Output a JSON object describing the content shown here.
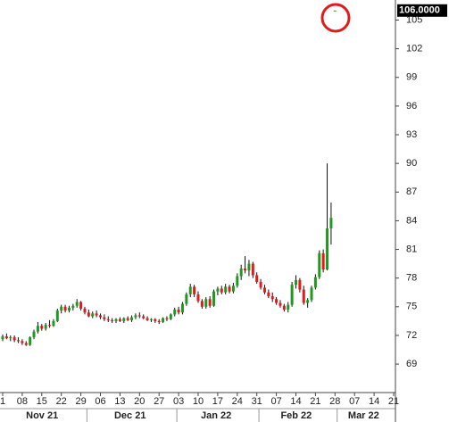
{
  "chart_data": {
    "type": "candlestick",
    "x": [
      "2021-11-01",
      "2021-11-02",
      "2021-11-03",
      "2021-11-04",
      "2021-11-05",
      "2021-11-08",
      "2021-11-09",
      "2021-11-10",
      "2021-11-11",
      "2021-11-12",
      "2021-11-15",
      "2021-11-16",
      "2021-11-17",
      "2021-11-18",
      "2021-11-19",
      "2021-11-22",
      "2021-11-23",
      "2021-11-24",
      "2021-11-25",
      "2021-11-26",
      "2021-11-29",
      "2021-11-30",
      "2021-12-01",
      "2021-12-02",
      "2021-12-03",
      "2021-12-06",
      "2021-12-07",
      "2021-12-08",
      "2021-12-09",
      "2021-12-10",
      "2021-12-13",
      "2021-12-14",
      "2021-12-15",
      "2021-12-16",
      "2021-12-17",
      "2021-12-20",
      "2021-12-21",
      "2021-12-22",
      "2021-12-23",
      "2021-12-24",
      "2021-12-27",
      "2021-12-28",
      "2021-12-29",
      "2021-12-30",
      "2021-12-31",
      "2022-01-03",
      "2022-01-04",
      "2022-01-05",
      "2022-01-06",
      "2022-01-07",
      "2022-01-10",
      "2022-01-11",
      "2022-01-12",
      "2022-01-13",
      "2022-01-14",
      "2022-01-17",
      "2022-01-18",
      "2022-01-19",
      "2022-01-20",
      "2022-01-21",
      "2022-01-24",
      "2022-01-25",
      "2022-01-26",
      "2022-01-27",
      "2022-01-28",
      "2022-01-31",
      "2022-02-01",
      "2022-02-02",
      "2022-02-03",
      "2022-02-04",
      "2022-02-07",
      "2022-02-08",
      "2022-02-09",
      "2022-02-10",
      "2022-02-11",
      "2022-02-14",
      "2022-02-15",
      "2022-02-16",
      "2022-02-17",
      "2022-02-18",
      "2022-02-21",
      "2022-02-22",
      "2022-02-23",
      "2022-02-24",
      "2022-02-25",
      "2022-02-28"
    ],
    "open": [
      71.6,
      71.9,
      71.7,
      71.8,
      71.5,
      71.4,
      71.2,
      71.0,
      71.8,
      72.4,
      73.0,
      72.7,
      73.1,
      73.0,
      73.5,
      74.6,
      75.0,
      74.6,
      74.9,
      75.1,
      75.5,
      74.8,
      74.4,
      74.0,
      74.3,
      74.1,
      73.9,
      73.7,
      73.6,
      73.5,
      73.7,
      73.5,
      73.8,
      73.6,
      73.9,
      74.1,
      74.0,
      73.8,
      73.6,
      73.7,
      73.5,
      73.4,
      73.8,
      73.7,
      74.2,
      74.7,
      74.4,
      75.3,
      76.3,
      77.1,
      76.3,
      75.6,
      75.0,
      75.8,
      75.1,
      76.6,
      76.9,
      76.5,
      77.1,
      76.6,
      77.2,
      78.2,
      79.0,
      78.8,
      79.5,
      78.3,
      77.6,
      77.0,
      76.5,
      76.1,
      75.8,
      75.4,
      75.1,
      74.7,
      75.2,
      77.3,
      77.8,
      76.8,
      75.4,
      75.7,
      77.0,
      78.1,
      80.6,
      78.9,
      83.2,
      106
    ],
    "high": [
      72.1,
      72.2,
      72.0,
      72.0,
      71.8,
      71.6,
      71.4,
      71.9,
      72.6,
      73.4,
      73.2,
      73.3,
      73.6,
      73.7,
      74.8,
      75.2,
      75.2,
      75.1,
      75.3,
      75.8,
      75.6,
      75.0,
      74.7,
      74.5,
      74.6,
      74.3,
      74.2,
      74.0,
      73.8,
      73.8,
      73.9,
      73.9,
      74.0,
      74.1,
      74.3,
      74.4,
      74.2,
      74.0,
      73.8,
      73.8,
      73.7,
      73.9,
      74.0,
      74.3,
      74.9,
      75.0,
      75.5,
      76.5,
      77.4,
      77.3,
      76.6,
      75.8,
      76.0,
      76.1,
      76.8,
      77.1,
      77.2,
      77.4,
      77.3,
      77.5,
      78.5,
      79.4,
      80.3,
      79.9,
      79.7,
      78.6,
      77.9,
      77.3,
      76.8,
      76.5,
      76.0,
      75.7,
      75.3,
      75.5,
      77.6,
      78.3,
      78.0,
      77.2,
      75.9,
      77.2,
      78.4,
      80.9,
      81.0,
      90.0,
      85.9,
      106
    ],
    "low": [
      71.4,
      71.6,
      71.4,
      71.3,
      71.2,
      71.0,
      70.9,
      70.9,
      71.6,
      72.2,
      72.5,
      72.5,
      72.8,
      72.9,
      73.4,
      74.3,
      74.4,
      74.4,
      74.6,
      74.9,
      74.6,
      74.2,
      73.9,
      73.8,
      73.9,
      73.7,
      73.5,
      73.4,
      73.3,
      73.3,
      73.4,
      73.3,
      73.5,
      73.4,
      73.7,
      73.8,
      73.7,
      73.5,
      73.4,
      73.3,
      73.2,
      73.3,
      73.5,
      73.6,
      74.0,
      74.2,
      74.2,
      75.1,
      76.0,
      76.0,
      75.4,
      74.8,
      74.8,
      74.9,
      75.0,
      76.2,
      76.3,
      76.3,
      76.4,
      76.4,
      77.0,
      77.8,
      78.5,
      78.2,
      78.0,
      77.4,
      76.8,
      76.3,
      75.9,
      75.5,
      75.2,
      74.9,
      74.5,
      74.4,
      75.0,
      76.9,
      76.5,
      75.2,
      74.9,
      75.5,
      76.8,
      77.9,
      78.6,
      78.8,
      81.5,
      106
    ],
    "close": [
      71.9,
      71.7,
      71.8,
      71.5,
      71.4,
      71.2,
      71.0,
      71.8,
      72.4,
      73.0,
      72.7,
      73.1,
      73.0,
      73.5,
      74.6,
      75.0,
      74.6,
      74.9,
      75.1,
      75.5,
      74.8,
      74.4,
      74.0,
      74.3,
      74.1,
      73.9,
      73.7,
      73.6,
      73.5,
      73.7,
      73.5,
      73.8,
      73.6,
      73.9,
      74.1,
      74.0,
      73.8,
      73.6,
      73.7,
      73.5,
      73.4,
      73.8,
      73.7,
      74.2,
      74.7,
      74.4,
      75.3,
      76.3,
      77.1,
      76.3,
      75.6,
      75.0,
      75.8,
      75.1,
      76.6,
      76.9,
      76.5,
      77.1,
      76.6,
      77.2,
      78.2,
      79.0,
      78.8,
      79.5,
      78.3,
      77.6,
      77.0,
      76.5,
      76.1,
      75.8,
      75.4,
      75.1,
      74.7,
      75.2,
      77.3,
      77.8,
      76.8,
      75.4,
      75.7,
      77.0,
      78.1,
      80.6,
      78.9,
      83.2,
      84.3,
      106
    ],
    "up_color": "#1f9a1f",
    "down_color": "#e01b1b",
    "ylim": [
      66.3,
      107.1
    ],
    "yticks": [
      69,
      72,
      75,
      78,
      81,
      84,
      87,
      90,
      93,
      96,
      99,
      102,
      105
    ],
    "xticks": [
      {
        "value": "2021-11-01",
        "label": "1"
      },
      {
        "value": "2021-11-08",
        "label": "08"
      },
      {
        "value": "2021-11-15",
        "label": "15"
      },
      {
        "value": "2021-11-22",
        "label": "22"
      },
      {
        "value": "2021-11-29",
        "label": "29"
      },
      {
        "value": "2021-12-06",
        "label": "06"
      },
      {
        "value": "2021-12-13",
        "label": "13"
      },
      {
        "value": "2021-12-20",
        "label": "20"
      },
      {
        "value": "2021-12-27",
        "label": "27"
      },
      {
        "value": "2022-01-03",
        "label": "03"
      },
      {
        "value": "2022-01-10",
        "label": "10"
      },
      {
        "value": "2022-01-17",
        "label": "17"
      },
      {
        "value": "2022-01-24",
        "label": "24"
      },
      {
        "value": "2022-01-31",
        "label": "31"
      },
      {
        "value": "2022-02-07",
        "label": "07"
      },
      {
        "value": "2022-02-14",
        "label": "14"
      },
      {
        "value": "2022-02-21",
        "label": "21"
      },
      {
        "value": "2022-02-28",
        "label": "28"
      },
      {
        "value": "2022-03-07",
        "label": "07"
      },
      {
        "value": "2022-03-14",
        "label": "14"
      },
      {
        "value": "2022-03-21",
        "label": "21"
      }
    ],
    "months": [
      {
        "value": "2021-11-01",
        "label": "Nov 21"
      },
      {
        "value": "2021-12-01",
        "label": "Dec 21"
      },
      {
        "value": "2022-01-01",
        "label": "Jan 22"
      },
      {
        "value": "2022-02-01",
        "label": "Feb 22"
      },
      {
        "value": "2022-03-01",
        "label": "Mar 22"
      }
    ],
    "last_price": {
      "value": 106,
      "label": "106.0000"
    }
  }
}
